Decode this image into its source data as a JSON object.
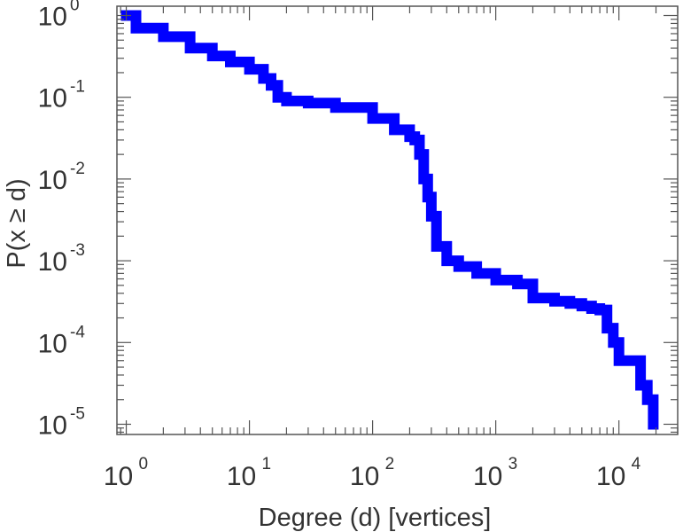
{
  "chart_data": {
    "type": "line",
    "line_style": "step",
    "xlabel": "Degree (d) [vertices]",
    "ylabel": "P(x ≥ d)",
    "xscale": "log",
    "yscale": "log",
    "xlim": [
      0.84,
      30000
    ],
    "ylim": [
      7.5e-06,
      1.3
    ],
    "x_ticks": [
      {
        "base": "10",
        "exp": "0",
        "value": 1
      },
      {
        "base": "10",
        "exp": "1",
        "value": 10
      },
      {
        "base": "10",
        "exp": "2",
        "value": 100
      },
      {
        "base": "10",
        "exp": "3",
        "value": 1000
      },
      {
        "base": "10",
        "exp": "4",
        "value": 10000
      }
    ],
    "y_ticks": [
      {
        "base": "10",
        "exp": "0",
        "value": 1
      },
      {
        "base": "10",
        "exp": "-1",
        "value": 0.1
      },
      {
        "base": "10",
        "exp": "-2",
        "value": 0.01
      },
      {
        "base": "10",
        "exp": "-3",
        "value": 0.001
      },
      {
        "base": "10",
        "exp": "-4",
        "value": 0.0001
      },
      {
        "base": "10",
        "exp": "-5",
        "value": 1e-05
      }
    ],
    "grid": false,
    "line_color": "#0000ff",
    "series": [
      {
        "x": [
          1,
          1.2,
          2,
          3.3,
          5,
          7,
          10,
          13,
          15,
          17,
          20,
          30,
          50,
          100,
          150,
          200,
          220,
          240,
          260,
          280,
          300,
          330,
          400,
          500,
          700,
          1000,
          1500,
          2000,
          3000,
          4000,
          5000,
          6000,
          7000,
          8000,
          9000,
          10000,
          13000,
          15000,
          17000,
          19000
        ],
        "y": [
          1,
          0.7,
          0.55,
          0.4,
          0.32,
          0.27,
          0.22,
          0.17,
          0.14,
          0.1,
          0.09,
          0.085,
          0.075,
          0.055,
          0.04,
          0.033,
          0.03,
          0.02,
          0.01,
          0.006,
          0.0035,
          0.0015,
          0.001,
          0.00085,
          0.0007,
          0.00058,
          0.00052,
          0.00035,
          0.00032,
          0.0003,
          0.00028,
          0.00026,
          0.00025,
          0.00015,
          0.0001,
          6e-05,
          6e-05,
          3e-05,
          2e-05,
          1e-05
        ]
      }
    ]
  }
}
